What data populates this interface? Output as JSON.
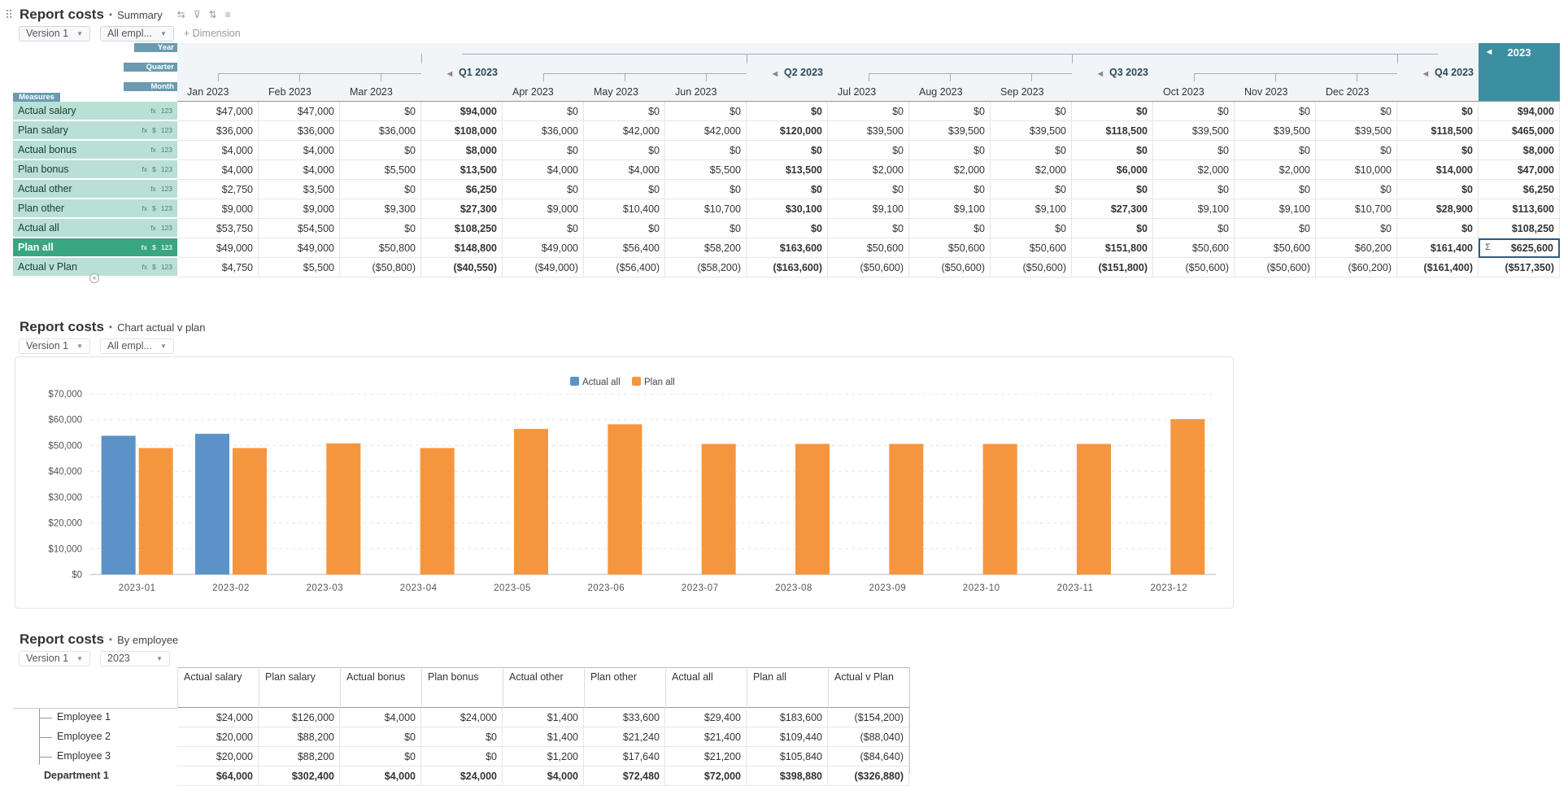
{
  "block1": {
    "title": "Report costs",
    "subtitle": "Summary",
    "filters": {
      "version": "Version 1",
      "employees": "All empl..."
    },
    "add_dimension": "+ Dimension",
    "dims": {
      "year": "Year",
      "quarter": "Quarter",
      "month": "Month",
      "measures": "Measures"
    },
    "year_label": "2023",
    "quarters": [
      "Q1 2023",
      "Q2 2023",
      "Q3 2023",
      "Q4 2023"
    ],
    "months": [
      "Jan 2023",
      "Feb 2023",
      "Mar 2023",
      "Apr 2023",
      "May 2023",
      "Jun 2023",
      "Jul 2023",
      "Aug 2023",
      "Sep 2023",
      "Oct 2023",
      "Nov 2023",
      "Dec 2023"
    ],
    "measure_icons": {
      "fx": "fx",
      "currency": "$",
      "num": "123"
    },
    "total_icon": "Σ",
    "rows": [
      {
        "label": "Actual salary",
        "icons": "fx 123",
        "values": [
          "$47,000",
          "$47,000",
          "$0",
          "$94,000",
          "$0",
          "$0",
          "$0",
          "$0",
          "$0",
          "$0",
          "$0",
          "$0",
          "$0",
          "$0",
          "$0",
          "$0",
          "$94,000"
        ]
      },
      {
        "label": "Plan salary",
        "icons": "fx $ 123",
        "values": [
          "$36,000",
          "$36,000",
          "$36,000",
          "$108,000",
          "$36,000",
          "$42,000",
          "$42,000",
          "$120,000",
          "$39,500",
          "$39,500",
          "$39,500",
          "$118,500",
          "$39,500",
          "$39,500",
          "$39,500",
          "$118,500",
          "$465,000"
        ]
      },
      {
        "label": "Actual bonus",
        "icons": "fx 123",
        "values": [
          "$4,000",
          "$4,000",
          "$0",
          "$8,000",
          "$0",
          "$0",
          "$0",
          "$0",
          "$0",
          "$0",
          "$0",
          "$0",
          "$0",
          "$0",
          "$0",
          "$0",
          "$8,000"
        ]
      },
      {
        "label": "Plan bonus",
        "icons": "fx $ 123",
        "values": [
          "$4,000",
          "$4,000",
          "$5,500",
          "$13,500",
          "$4,000",
          "$4,000",
          "$5,500",
          "$13,500",
          "$2,000",
          "$2,000",
          "$2,000",
          "$6,000",
          "$2,000",
          "$2,000",
          "$10,000",
          "$14,000",
          "$47,000"
        ]
      },
      {
        "label": "Actual other",
        "icons": "fx 123",
        "values": [
          "$2,750",
          "$3,500",
          "$0",
          "$6,250",
          "$0",
          "$0",
          "$0",
          "$0",
          "$0",
          "$0",
          "$0",
          "$0",
          "$0",
          "$0",
          "$0",
          "$0",
          "$6,250"
        ]
      },
      {
        "label": "Plan other",
        "icons": "fx $ 123",
        "values": [
          "$9,000",
          "$9,000",
          "$9,300",
          "$27,300",
          "$9,000",
          "$10,400",
          "$10,700",
          "$30,100",
          "$9,100",
          "$9,100",
          "$9,100",
          "$27,300",
          "$9,100",
          "$9,100",
          "$10,700",
          "$28,900",
          "$113,600"
        ]
      },
      {
        "label": "Actual all",
        "icons": "fx 123",
        "values": [
          "$53,750",
          "$54,500",
          "$0",
          "$108,250",
          "$0",
          "$0",
          "$0",
          "$0",
          "$0",
          "$0",
          "$0",
          "$0",
          "$0",
          "$0",
          "$0",
          "$0",
          "$108,250"
        ]
      },
      {
        "label": "Plan all",
        "icons": "fx $ 123",
        "selected": true,
        "values": [
          "$49,000",
          "$49,000",
          "$50,800",
          "$148,800",
          "$49,000",
          "$56,400",
          "$58,200",
          "$163,600",
          "$50,600",
          "$50,600",
          "$50,600",
          "$151,800",
          "$50,600",
          "$50,600",
          "$60,200",
          "$161,400",
          "$625,600"
        ]
      },
      {
        "label": "Actual v Plan",
        "icons": "fx $ 123",
        "values": [
          "$4,750",
          "$5,500",
          "($50,800)",
          "($40,550)",
          "($49,000)",
          "($56,400)",
          "($58,200)",
          "($163,600)",
          "($50,600)",
          "($50,600)",
          "($50,600)",
          "($151,800)",
          "($50,600)",
          "($50,600)",
          "($60,200)",
          "($161,400)",
          "($517,350)"
        ]
      }
    ]
  },
  "block2": {
    "title": "Report costs",
    "subtitle": "Chart actual v plan",
    "filters": {
      "version": "Version 1",
      "employees": "All empl..."
    }
  },
  "chart_data": {
    "type": "bar",
    "categories": [
      "2023-01",
      "2023-02",
      "2023-03",
      "2023-04",
      "2023-05",
      "2023-06",
      "2023-07",
      "2023-08",
      "2023-09",
      "2023-10",
      "2023-11",
      "2023-12"
    ],
    "series": [
      {
        "name": "Actual all",
        "color": "#5b93c9",
        "values": [
          53750,
          54500,
          0,
          0,
          0,
          0,
          0,
          0,
          0,
          0,
          0,
          0
        ]
      },
      {
        "name": "Plan all",
        "color": "#f5963f",
        "values": [
          49000,
          49000,
          50800,
          49000,
          56400,
          58200,
          50600,
          50600,
          50600,
          50600,
          50600,
          60200
        ]
      }
    ],
    "ylim": [
      0,
      70000
    ],
    "yticks": [
      "$0",
      "$10,000",
      "$20,000",
      "$30,000",
      "$40,000",
      "$50,000",
      "$60,000",
      "$70,000"
    ],
    "grid": true,
    "legend": "top-center"
  },
  "block3": {
    "title": "Report costs",
    "subtitle": "By employee",
    "filters": {
      "version": "Version 1",
      "year": "2023"
    },
    "columns": [
      "Actual salary",
      "Plan salary",
      "Actual bonus",
      "Plan bonus",
      "Actual other",
      "Plan other",
      "Actual all",
      "Plan all",
      "Actual v Plan"
    ],
    "rows": [
      {
        "label": "Employee 1",
        "values": [
          "$24,000",
          "$126,000",
          "$4,000",
          "$24,000",
          "$1,400",
          "$33,600",
          "$29,400",
          "$183,600",
          "($154,200)"
        ]
      },
      {
        "label": "Employee 2",
        "values": [
          "$20,000",
          "$88,200",
          "$0",
          "$0",
          "$1,400",
          "$21,240",
          "$21,400",
          "$109,440",
          "($88,040)"
        ]
      },
      {
        "label": "Employee 3",
        "values": [
          "$20,000",
          "$88,200",
          "$0",
          "$0",
          "$1,200",
          "$17,640",
          "$21,200",
          "$105,840",
          "($84,640)"
        ]
      },
      {
        "label": "Department 1",
        "values": [
          "$64,000",
          "$302,400",
          "$4,000",
          "$24,000",
          "$4,000",
          "$72,480",
          "$72,000",
          "$398,880",
          "($326,880)"
        ]
      }
    ]
  }
}
